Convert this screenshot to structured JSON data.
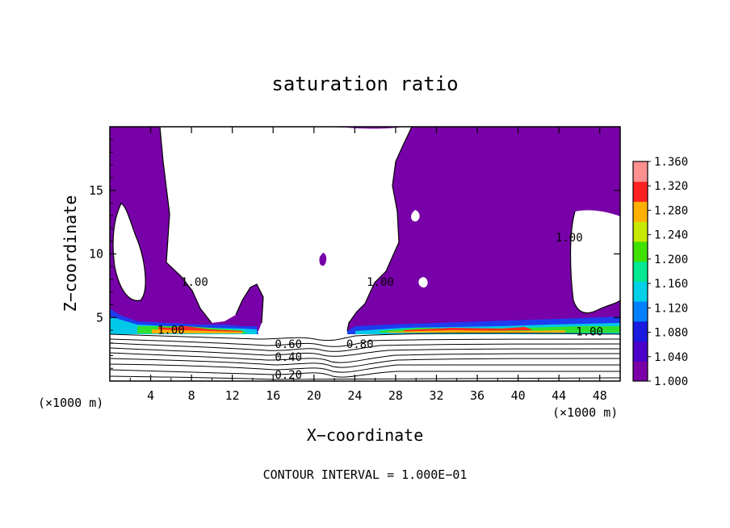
{
  "chart_data": {
    "type": "heatmap",
    "title": "saturation ratio",
    "xlabel": "X−coordinate",
    "ylabel": "Z−coordinate",
    "x_unit_left": "(×1000 m)",
    "x_unit_right": "(×1000 m)",
    "footer": "CONTOUR INTERVAL = 1.000E−01",
    "xlim": [
      0,
      50
    ],
    "ylim": [
      0,
      20
    ],
    "x_ticks": [
      4,
      8,
      12,
      16,
      20,
      24,
      28,
      32,
      36,
      40,
      44,
      48
    ],
    "x_tick_labels": [
      "4",
      "8",
      "12",
      "16",
      "20",
      "24",
      "28",
      "32",
      "36",
      "40",
      "44",
      "48"
    ],
    "y_ticks": [
      5,
      10,
      15
    ],
    "y_tick_labels": [
      "5",
      "10",
      "15"
    ],
    "colorbar": {
      "min": 1.0,
      "max": 1.36,
      "ticks": [
        1.0,
        1.04,
        1.08,
        1.12,
        1.16,
        1.2,
        1.24,
        1.28,
        1.32,
        1.36
      ],
      "tick_labels": [
        "1.000",
        "1.040",
        "1.080",
        "1.120",
        "1.160",
        "1.200",
        "1.240",
        "1.280",
        "1.320",
        "1.360"
      ],
      "colors": [
        "#7b00a8",
        "#4a00c8",
        "#1a1ae0",
        "#0080ff",
        "#00d0e8",
        "#00e890",
        "#40e000",
        "#c8e800",
        "#ffb000",
        "#ff2020",
        "#ff9090"
      ]
    },
    "contour_labels": [
      {
        "text": "1.00",
        "x": 6.0,
        "y": 3.7
      },
      {
        "text": "1.00",
        "x": 8.3,
        "y": 7.5
      },
      {
        "text": "1.00",
        "x": 26.5,
        "y": 7.5
      },
      {
        "text": "1.00",
        "x": 45.0,
        "y": 11.0
      },
      {
        "text": "1.00",
        "x": 47.0,
        "y": 3.6
      },
      {
        "text": "0.60",
        "x": 17.5,
        "y": 2.6
      },
      {
        "text": "0.80",
        "x": 24.5,
        "y": 2.6
      },
      {
        "text": "0.40",
        "x": 17.5,
        "y": 1.6
      },
      {
        "text": "0.20",
        "x": 17.5,
        "y": 0.2
      }
    ]
  }
}
